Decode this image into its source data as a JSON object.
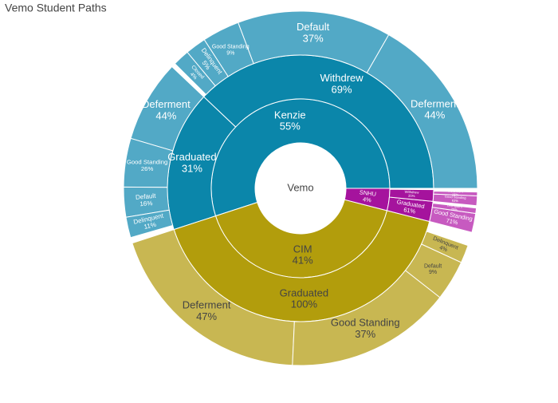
{
  "chart_data": {
    "type": "sunburst",
    "title": "Vemo Student Paths",
    "root": "Vemo",
    "children": [
      {
        "name": "Kenzie",
        "value": 55,
        "value_label": "55%",
        "color": "#0b86aa",
        "label_color": "#ffffff",
        "children": [
          {
            "name": "Withdrew",
            "value": 69,
            "value_label": "69%",
            "color": "#0b86aa",
            "label_color": "#ffffff",
            "children": [
              {
                "name": "Deferment",
                "value": 44,
                "value_label": "44%",
                "color": "#52a9c6",
                "label_color": "#ffffff"
              },
              {
                "name": "Default",
                "value": 37,
                "value_label": "37%",
                "color": "#52a9c6",
                "label_color": "#ffffff"
              },
              {
                "name": "Good Standing",
                "value": 9,
                "value_label": "9%",
                "color": "#52a9c6",
                "label_color": "#ffffff"
              },
              {
                "name": "Delinquent",
                "value": 5,
                "value_label": "5%",
                "color": "#52a9c6",
                "label_color": "#ffffff"
              },
              {
                "name": "Closed",
                "value": 4,
                "value_label": "4%",
                "color": "#52a9c6",
                "label_color": "#ffffff"
              }
            ]
          },
          {
            "name": "Graduated",
            "value": 31,
            "value_label": "31%",
            "color": "#0b86aa",
            "label_color": "#ffffff",
            "children": [
              {
                "name": "Deferment",
                "value": 44,
                "value_label": "44%",
                "color": "#52a9c6",
                "label_color": "#ffffff"
              },
              {
                "name": "Good Standing",
                "value": 26,
                "value_label": "26%",
                "color": "#52a9c6",
                "label_color": "#ffffff"
              },
              {
                "name": "Default",
                "value": 16,
                "value_label": "16%",
                "color": "#52a9c6",
                "label_color": "#ffffff"
              },
              {
                "name": "Delinquent",
                "value": 11,
                "value_label": "11%",
                "color": "#52a9c6",
                "label_color": "#ffffff"
              }
            ]
          }
        ]
      },
      {
        "name": "CIM",
        "value": 41,
        "value_label": "41%",
        "color": "#b29d0c",
        "label_color": "#444444",
        "children": [
          {
            "name": "Graduated",
            "value": 100,
            "value_label": "100%",
            "color": "#b29d0c",
            "label_color": "#444444",
            "children": [
              {
                "name": "Deferment",
                "value": 47,
                "value_label": "47%",
                "color": "#c8b752",
                "label_color": "#444444"
              },
              {
                "name": "Good Standing",
                "value": 37,
                "value_label": "37%",
                "color": "#c8b752",
                "label_color": "#444444"
              },
              {
                "name": "Default",
                "value": 9,
                "value_label": "9%",
                "color": "#c8b752",
                "label_color": "#444444"
              },
              {
                "name": "Delinquent",
                "value": 4,
                "value_label": "4%",
                "color": "#c8b752",
                "label_color": "#444444"
              }
            ]
          }
        ]
      },
      {
        "name": "SNHU",
        "value": 4,
        "value_label": "4%",
        "color": "#a5139d",
        "label_color": "#ffffff",
        "children": [
          {
            "name": "Graduated",
            "value": 61,
            "value_label": "61%",
            "color": "#a5139d",
            "label_color": "#ffffff",
            "children": [
              {
                "name": "Good Standing",
                "value": 71,
                "value_label": "71%",
                "color": "#c75ac0",
                "label_color": "#ffffff"
              },
              {
                "name": "Delinquent",
                "value": 20,
                "value_label": "20%",
                "color": "#c75ac0",
                "label_color": "#ffffff"
              }
            ]
          },
          {
            "name": "Withdrew",
            "value": 35,
            "value_label": "35%",
            "color": "#a5139d",
            "label_color": "#ffffff",
            "children": [
              {
                "name": "Good Standing",
                "value": 63,
                "value_label": "63%",
                "color": "#c75ac0",
                "label_color": "#ffffff"
              },
              {
                "name": "Deferment",
                "value": 25,
                "value_label": "25%",
                "color": "#c75ac0",
                "label_color": "#ffffff"
              }
            ]
          }
        ]
      }
    ]
  }
}
